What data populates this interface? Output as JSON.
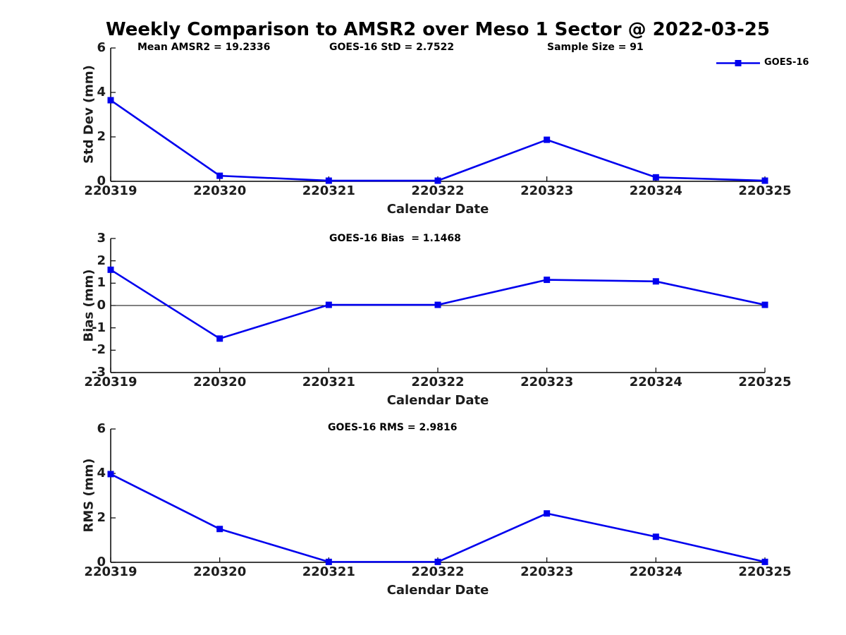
{
  "title": "Weekly Comparison to AMSR2 over Meso 1 Sector @ 2022-03-25",
  "xlabel": "Calendar Date",
  "legend": {
    "label": "GOES-16",
    "marker": "filled-square",
    "position": "top-right"
  },
  "colors": {
    "line": "#0000EE",
    "axis": "#000000",
    "tick_text": "#1c1c1c",
    "text": "#000000"
  },
  "categories": [
    "220319",
    "220320",
    "220321",
    "220322",
    "220323",
    "220324",
    "220325"
  ],
  "chart_data": [
    {
      "type": "line",
      "name": "std-dev",
      "ylabel": "Std Dev (mm)",
      "xlabel": "Calendar Date",
      "x": [
        "220319",
        "220320",
        "220321",
        "220322",
        "220323",
        "220324",
        "220325"
      ],
      "series": [
        {
          "name": "GOES-16",
          "values": [
            3.65,
            0.25,
            0.03,
            0.03,
            1.87,
            0.18,
            0.03
          ]
        }
      ],
      "ylim": [
        0,
        6
      ],
      "yticks": [
        0,
        2,
        4,
        6
      ],
      "grid": false,
      "annotations": [
        {
          "text": "Mean AMSR2 = 19.2336"
        },
        {
          "text": "GOES-16 StD = 2.7522"
        },
        {
          "text": "Sample Size = 91"
        }
      ]
    },
    {
      "type": "line",
      "name": "bias",
      "ylabel": "Bias (mm)",
      "xlabel": "Calendar Date",
      "x": [
        "220319",
        "220320",
        "220321",
        "220322",
        "220323",
        "220324",
        "220325"
      ],
      "series": [
        {
          "name": "GOES-16",
          "values": [
            1.6,
            -1.48,
            0.03,
            0.03,
            1.15,
            1.08,
            0.03
          ]
        }
      ],
      "ylim": [
        -3,
        3
      ],
      "yticks": [
        3,
        2,
        1,
        0,
        -1,
        -2,
        -3
      ],
      "zero_line": true,
      "grid": false,
      "annotations": [
        {
          "text": "GOES-16 Bias  = 1.1468"
        }
      ]
    },
    {
      "type": "line",
      "name": "rms",
      "ylabel": "RMS (mm)",
      "xlabel": "Calendar Date",
      "x": [
        "220319",
        "220320",
        "220321",
        "220322",
        "220323",
        "220324",
        "220325"
      ],
      "series": [
        {
          "name": "GOES-16",
          "values": [
            3.97,
            1.5,
            0.02,
            0.02,
            2.2,
            1.15,
            0.02
          ]
        }
      ],
      "ylim": [
        0,
        6
      ],
      "yticks": [
        0,
        2,
        4,
        6
      ],
      "grid": false,
      "annotations": [
        {
          "text": "GOES-16 RMS = 2.9816"
        }
      ]
    }
  ]
}
